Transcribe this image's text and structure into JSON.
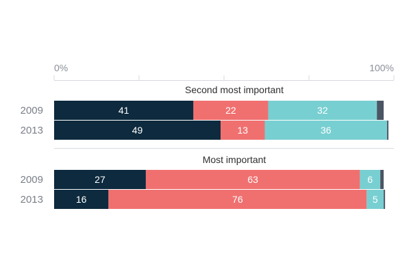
{
  "chart_data": {
    "type": "bar",
    "orientation": "horizontal",
    "stacked": true,
    "normalized": true,
    "xlim": [
      0,
      100
    ],
    "ticks": [
      "0%",
      "100%"
    ],
    "grid": "vertical",
    "legend": "none",
    "colors": [
      "#0d2a3e",
      "#f07070",
      "#78cfd1",
      "#4b5563"
    ],
    "groups": [
      {
        "title": "Second most important",
        "rows": [
          {
            "label": "2009",
            "values": [
              41,
              22,
              32,
              2
            ],
            "labels": [
              "41",
              "22",
              "32",
              ""
            ]
          },
          {
            "label": "2013",
            "values": [
              49,
              13,
              36,
              0.4
            ],
            "labels": [
              "49",
              "13",
              "36",
              ""
            ]
          }
        ]
      },
      {
        "title": "Most important",
        "rows": [
          {
            "label": "2009",
            "values": [
              27,
              63,
              6,
              1
            ],
            "labels": [
              "27",
              "63",
              "6",
              ""
            ]
          },
          {
            "label": "2013",
            "values": [
              16,
              76,
              5,
              0.4
            ],
            "labels": [
              "16",
              "76",
              "5",
              ""
            ]
          }
        ]
      }
    ]
  }
}
